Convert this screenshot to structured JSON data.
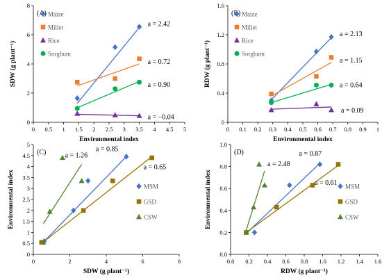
{
  "chart_data": [
    {
      "type": "scatter",
      "panel_label": "(A)",
      "xlabel": "Environmental index",
      "ylabel": "SDW (g plant⁻¹)",
      "xlim": [
        0,
        5
      ],
      "ylim": [
        0,
        8
      ],
      "xticks": [
        "0",
        "0.5",
        "1",
        "1.5",
        "2",
        "2.5",
        "3",
        "3.5",
        "4",
        "4.5",
        "5"
      ],
      "yticks": [
        "0",
        "2",
        "4",
        "6",
        "8"
      ],
      "legend_position": "upper-left",
      "series": [
        {
          "name": "Maize",
          "color": "#4472C4",
          "marker": "diamond",
          "x": [
            1.45,
            2.7,
            3.5
          ],
          "y": [
            1.65,
            5.15,
            6.55
          ],
          "fit": {
            "x": [
              1.45,
              3.5
            ],
            "y": [
              1.3,
              6.5
            ]
          },
          "slope_label": "a = 2.42"
        },
        {
          "name": "Millet",
          "color": "#ED7D31",
          "marker": "square",
          "x": [
            1.45,
            2.7,
            3.5
          ],
          "y": [
            2.75,
            3.0,
            4.35
          ],
          "fit": {
            "x": [
              1.45,
              3.5
            ],
            "y": [
              2.5,
              4.0
            ]
          },
          "slope_label": "a = 0.72"
        },
        {
          "name": "Rice",
          "color": "#7030A0",
          "marker": "triangle",
          "x": [
            1.45,
            2.7,
            3.5
          ],
          "y": [
            0.6,
            0.5,
            0.45
          ],
          "fit": {
            "x": [
              1.45,
              3.5
            ],
            "y": [
              0.55,
              0.45
            ]
          },
          "slope_label": "a = −0.04"
        },
        {
          "name": "Sorghum",
          "color": "#00B050",
          "marker": "circle",
          "x": [
            1.45,
            2.7,
            3.5
          ],
          "y": [
            0.95,
            2.3,
            2.75
          ],
          "fit": {
            "x": [
              1.45,
              3.5
            ],
            "y": [
              1.0,
              2.8
            ]
          },
          "slope_label": "a = 0.90"
        }
      ]
    },
    {
      "type": "scatter",
      "panel_label": "(B)",
      "xlabel": "Environmental index",
      "ylabel": "RDW (g plant⁻¹)",
      "xlim": [
        0,
        1
      ],
      "ylim": [
        0,
        1.6
      ],
      "xticks": [
        "0",
        "0.1",
        "0.2",
        "0.3",
        "0.4",
        "0.5",
        "0.6",
        "0.7",
        "0.8",
        "0.9",
        "1"
      ],
      "yticks": [
        "0",
        "0.4",
        "0.8",
        "1.2",
        "1.6"
      ],
      "legend_position": "upper-left",
      "series": [
        {
          "name": "Maize",
          "color": "#4472C4",
          "marker": "diamond",
          "x": [
            0.29,
            0.59,
            0.69
          ],
          "y": [
            0.3,
            0.97,
            1.17
          ],
          "fit": {
            "x": [
              0.29,
              0.69
            ],
            "y": [
              0.31,
              1.16
            ]
          },
          "slope_label": "a = 2.13"
        },
        {
          "name": "Millet",
          "color": "#ED7D31",
          "marker": "square",
          "x": [
            0.29,
            0.59,
            0.69
          ],
          "y": [
            0.39,
            0.63,
            0.89
          ],
          "fit": {
            "x": [
              0.29,
              0.69
            ],
            "y": [
              0.36,
              0.82
            ]
          },
          "slope_label": "a = 1.15"
        },
        {
          "name": "Rice",
          "color": "#7030A0",
          "marker": "triangle",
          "x": [
            0.29,
            0.59,
            0.69
          ],
          "y": [
            0.17,
            0.25,
            0.17
          ],
          "fit": {
            "x": [
              0.29,
              0.69
            ],
            "y": [
              0.18,
              0.21
            ]
          },
          "slope_label": "a = 0.09"
        },
        {
          "name": "Sorghum",
          "color": "#00B050",
          "marker": "circle",
          "x": [
            0.29,
            0.59,
            0.69
          ],
          "y": [
            0.27,
            0.51,
            0.51
          ],
          "fit": {
            "x": [
              0.29,
              0.69
            ],
            "y": [
              0.27,
              0.52
            ]
          },
          "slope_label": "a = 0.64"
        }
      ]
    },
    {
      "type": "scatter",
      "panel_label": "(C)",
      "xlabel": "SDW (g plant⁻¹)",
      "ylabel": "Environmental index",
      "xlim": [
        0,
        8
      ],
      "ylim": [
        0,
        5
      ],
      "xticks": [
        "0",
        "2",
        "4",
        "6",
        "8"
      ],
      "yticks": [
        "0",
        "0.5",
        "1",
        "1.5",
        "2",
        "2.5",
        "3",
        "3.5",
        "4",
        "4.5",
        "5"
      ],
      "legend_position": "right",
      "series": [
        {
          "name": "MSM",
          "color": "#4472C4",
          "marker": "diamond",
          "x": [
            0.6,
            2.2,
            3.0,
            5.1
          ],
          "y": [
            0.6,
            2.0,
            3.35,
            4.45
          ],
          "fit": {
            "x": [
              0.6,
              5.1
            ],
            "y": [
              0.6,
              4.45
            ]
          },
          "slope_label": "a = 0.85"
        },
        {
          "name": "GSD",
          "color": "#997300",
          "marker": "square",
          "x": [
            0.45,
            2.75,
            4.35,
            6.5
          ],
          "y": [
            0.55,
            2.0,
            3.35,
            4.4
          ],
          "fit": {
            "x": [
              0.45,
              6.5
            ],
            "y": [
              0.5,
              4.45
            ]
          },
          "slope_label": "a = 0.65"
        },
        {
          "name": "CSW",
          "color": "#548235",
          "marker": "triangle",
          "x": [
            0.55,
            0.9,
            1.6,
            2.65
          ],
          "y": [
            0.55,
            1.95,
            4.4,
            3.35
          ],
          "fit": {
            "x": [
              0.55,
              2.65
            ],
            "y": [
              1.4,
              4.1
            ]
          },
          "slope_label": "a = 1.26"
        }
      ]
    },
    {
      "type": "scatter",
      "panel_label": "(D)",
      "xlabel": "RDW (g plant⁻¹)",
      "ylabel": "Environmental index",
      "xlim": [
        0,
        1.6
      ],
      "ylim": [
        0,
        1
      ],
      "xticks": [
        "0.0",
        "0.2",
        "0.4",
        "0.6",
        "0.8",
        "1.0",
        "1.2",
        "1.4",
        "1.6"
      ],
      "yticks": [
        "0.0",
        "0.2",
        "0.4",
        "0.6",
        "0.8",
        "1.0"
      ],
      "legend_position": "right",
      "series": [
        {
          "name": "MSM",
          "color": "#4472C4",
          "marker": "diamond",
          "x": [
            0.17,
            0.26,
            0.64,
            0.97
          ],
          "y": [
            0.2,
            0.2,
            0.63,
            0.82
          ],
          "fit": {
            "x": [
              0.17,
              0.97
            ],
            "y": [
              0.19,
              0.83
            ]
          },
          "slope_label": "a = 0.87"
        },
        {
          "name": "GSD",
          "color": "#997300",
          "marker": "square",
          "x": [
            0.17,
            0.5,
            0.89,
            1.17
          ],
          "y": [
            0.2,
            0.43,
            0.63,
            0.82
          ],
          "fit": {
            "x": [
              0.17,
              1.17
            ],
            "y": [
              0.2,
              0.81
            ]
          },
          "slope_label": "a = 0.61"
        },
        {
          "name": "CSW",
          "color": "#548235",
          "marker": "triangle",
          "x": [
            0.17,
            0.25,
            0.31,
            0.37
          ],
          "y": [
            0.2,
            0.43,
            0.82,
            0.63
          ],
          "fit": {
            "x": [
              0.17,
              0.37
            ],
            "y": [
              0.22,
              0.76
            ]
          },
          "slope_label": "a = 2.48"
        }
      ]
    }
  ]
}
